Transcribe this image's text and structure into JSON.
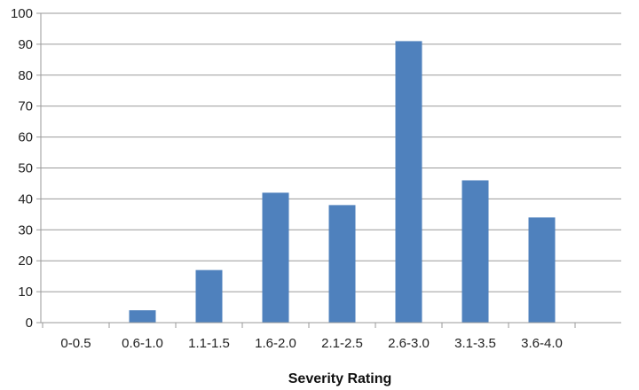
{
  "chart_data": {
    "type": "bar",
    "categories": [
      "0-0.5",
      "0.6-1.0",
      "1.1-1.5",
      "1.6-2.0",
      "2.1-2.5",
      "2.6-3.0",
      "3.1-3.5",
      "3.6-4.0"
    ],
    "values": [
      0,
      4,
      17,
      42,
      38,
      91,
      46,
      34
    ],
    "xlabel": "Severity Rating",
    "ylabel": "",
    "ylim": [
      0,
      100
    ],
    "yticks": [
      0,
      10,
      20,
      30,
      40,
      50,
      60,
      70,
      80,
      90,
      100
    ],
    "bar_color": "#4f81bd",
    "grid": true,
    "legend": "none"
  }
}
